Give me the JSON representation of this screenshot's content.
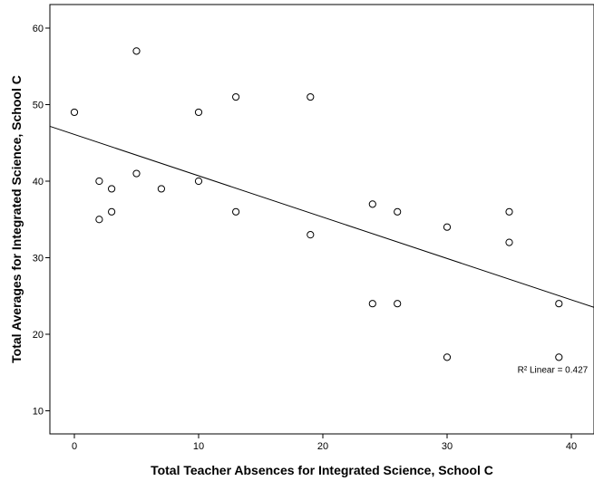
{
  "chart_data": {
    "type": "scatter",
    "xlabel": "Total Teacher Absences for Integrated Science, School C",
    "ylabel": "Total Averages for Integrated Science, School C",
    "xlim": [
      -2,
      42
    ],
    "ylim": [
      7,
      62
    ],
    "x_ticks": [
      0,
      10,
      20,
      30,
      40
    ],
    "y_ticks": [
      10,
      20,
      30,
      40,
      50,
      60
    ],
    "grid": false,
    "points": [
      {
        "x": 0,
        "y": 49
      },
      {
        "x": 2,
        "y": 40
      },
      {
        "x": 2,
        "y": 35
      },
      {
        "x": 3,
        "y": 39
      },
      {
        "x": 3,
        "y": 36
      },
      {
        "x": 5,
        "y": 57
      },
      {
        "x": 5,
        "y": 41
      },
      {
        "x": 7,
        "y": 39
      },
      {
        "x": 10,
        "y": 49
      },
      {
        "x": 10,
        "y": 40
      },
      {
        "x": 13,
        "y": 51
      },
      {
        "x": 13,
        "y": 36
      },
      {
        "x": 19,
        "y": 51
      },
      {
        "x": 19,
        "y": 33
      },
      {
        "x": 24,
        "y": 37
      },
      {
        "x": 24,
        "y": 24
      },
      {
        "x": 26,
        "y": 36
      },
      {
        "x": 26,
        "y": 24
      },
      {
        "x": 30,
        "y": 34
      },
      {
        "x": 30,
        "y": 17
      },
      {
        "x": 35,
        "y": 36
      },
      {
        "x": 35,
        "y": 32
      },
      {
        "x": 39,
        "y": 24
      },
      {
        "x": 39,
        "y": 17
      }
    ],
    "fit_line": {
      "type": "linear",
      "intercept": 46.1,
      "slope": -0.54
    },
    "annotation": {
      "label": "R² Linear = 0.427",
      "x": 38.5,
      "y": 15
    }
  }
}
